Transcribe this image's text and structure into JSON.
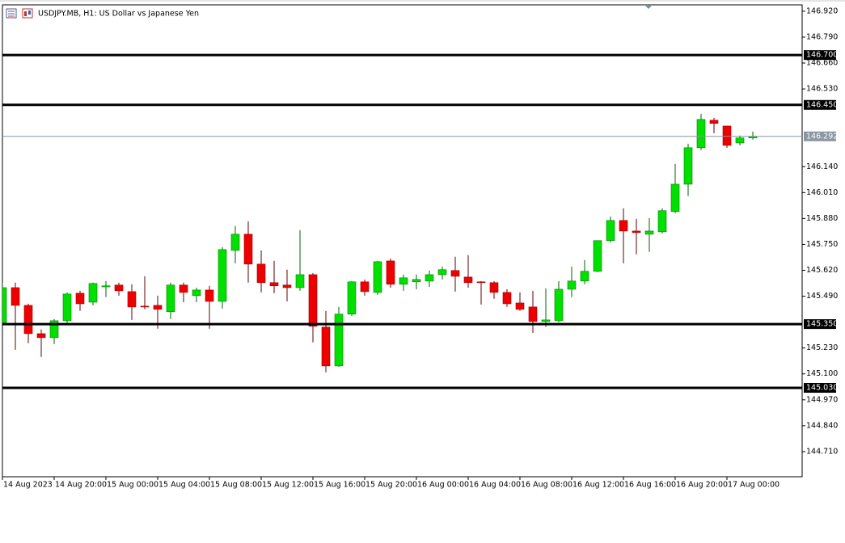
{
  "chart_data": {
    "type": "candlestick",
    "title": "USDJPY.MB, H1:  US Dollar vs Japanese Yen",
    "categories": [
      "14 Aug 2023",
      null,
      null,
      null,
      "14 Aug 20:00",
      null,
      null,
      null,
      "15 Aug 00:00",
      null,
      null,
      null,
      "15 Aug 04:00",
      null,
      null,
      null,
      "15 Aug 08:00",
      null,
      null,
      null,
      "15 Aug 12:00",
      null,
      null,
      null,
      "15 Aug 16:00",
      null,
      null,
      null,
      "15 Aug 20:00",
      null,
      null,
      null,
      "16 Aug 00:00",
      null,
      null,
      null,
      "16 Aug 04:00",
      null,
      null,
      null,
      "16 Aug 08:00",
      null,
      null,
      null,
      "16 Aug 12:00",
      null,
      null,
      null,
      "16 Aug 16:00",
      null,
      null,
      null,
      "16 Aug 20:00",
      null,
      null,
      null,
      "17 Aug 00:00",
      null,
      null
    ],
    "open": [
      145.355,
      145.533,
      145.444,
      145.302,
      145.282,
      145.367,
      145.505,
      145.46,
      145.537,
      145.546,
      145.513,
      145.44,
      145.444,
      145.412,
      145.546,
      145.493,
      145.521,
      145.464,
      145.72,
      145.801,
      145.651,
      145.558,
      145.546,
      145.533,
      145.598,
      145.335,
      145.14,
      145.4,
      145.562,
      145.509,
      145.667,
      145.55,
      145.562,
      145.566,
      145.598,
      145.619,
      145.586,
      145.562,
      145.558,
      145.509,
      145.456,
      145.436,
      145.363,
      145.367,
      145.525,
      145.566,
      145.615,
      145.769,
      145.87,
      145.817,
      145.801,
      145.813,
      145.915,
      146.052,
      146.235,
      146.373,
      146.344,
      146.259,
      146.284
    ],
    "high": [
      145.558,
      145.558,
      145.452,
      145.323,
      145.375,
      145.509,
      145.517,
      145.558,
      145.566,
      145.558,
      145.55,
      145.59,
      145.493,
      145.558,
      145.558,
      145.533,
      145.542,
      145.736,
      145.842,
      145.866,
      145.72,
      145.667,
      145.623,
      145.821,
      145.606,
      145.416,
      145.436,
      145.566,
      145.574,
      145.667,
      145.679,
      145.598,
      145.598,
      145.619,
      145.639,
      145.688,
      145.696,
      145.566,
      145.566,
      145.525,
      145.509,
      145.517,
      145.529,
      145.566,
      145.639,
      145.671,
      145.769,
      145.89,
      145.931,
      145.878,
      145.882,
      145.931,
      146.154,
      146.255,
      146.405,
      146.385,
      146.344,
      146.296,
      146.316
    ],
    "low": [
      145.347,
      145.221,
      145.254,
      145.185,
      145.25,
      145.347,
      145.416,
      145.444,
      145.485,
      145.493,
      145.371,
      145.424,
      145.327,
      145.375,
      145.46,
      145.46,
      145.327,
      145.428,
      145.655,
      145.558,
      145.509,
      145.505,
      145.464,
      145.517,
      145.258,
      145.108,
      145.136,
      145.391,
      145.493,
      145.497,
      145.533,
      145.517,
      145.525,
      145.537,
      145.574,
      145.513,
      145.533,
      145.448,
      145.477,
      145.436,
      145.416,
      145.306,
      145.335,
      145.359,
      145.485,
      145.55,
      145.61,
      145.76,
      145.655,
      145.7,
      145.712,
      145.805,
      145.906,
      145.992,
      146.223,
      146.308,
      146.235,
      146.247,
      146.276
    ],
    "close": [
      145.533,
      145.444,
      145.302,
      145.282,
      145.367,
      145.501,
      145.452,
      145.554,
      145.542,
      145.517,
      145.436,
      145.436,
      145.424,
      145.546,
      145.509,
      145.521,
      145.464,
      145.724,
      145.801,
      145.651,
      145.558,
      145.542,
      145.533,
      145.598,
      145.339,
      145.14,
      145.4,
      145.562,
      145.513,
      145.663,
      145.55,
      145.582,
      145.574,
      145.598,
      145.623,
      145.59,
      145.558,
      145.558,
      145.509,
      145.452,
      145.424,
      145.363,
      145.371,
      145.525,
      145.566,
      145.615,
      145.769,
      145.87,
      145.817,
      145.809,
      145.817,
      145.919,
      146.052,
      146.235,
      146.377,
      146.357,
      146.247,
      146.284,
      146.292
    ],
    "up_color": "#00e000",
    "down_color": "#ee0000",
    "ylim": [
      144.584,
      146.952
    ],
    "yticks": [
      {
        "value": 146.92,
        "label": "146.920"
      },
      {
        "value": 146.79,
        "label": "146.790"
      },
      {
        "value": 146.66,
        "label": "146.660"
      },
      {
        "value": 146.53,
        "label": "146.530"
      },
      {
        "value": 146.14,
        "label": "146.140"
      },
      {
        "value": 146.01,
        "label": "146.010"
      },
      {
        "value": 145.88,
        "label": "145.880"
      },
      {
        "value": 145.75,
        "label": "145.750"
      },
      {
        "value": 145.62,
        "label": "145.620"
      },
      {
        "value": 145.49,
        "label": "145.490"
      },
      {
        "value": 145.23,
        "label": "145.230"
      },
      {
        "value": 145.1,
        "label": "145.100"
      },
      {
        "value": 144.97,
        "label": "144.970"
      },
      {
        "value": 144.84,
        "label": "144.840"
      },
      {
        "value": 144.71,
        "label": "144.710"
      }
    ],
    "levels": [
      {
        "value": 146.7,
        "label": "146.700"
      },
      {
        "value": 146.45,
        "label": "146.450"
      },
      {
        "value": 145.35,
        "label": "145.350"
      },
      {
        "value": 145.03,
        "label": "145.030"
      }
    ],
    "current_price": 146.292,
    "grid": false
  }
}
